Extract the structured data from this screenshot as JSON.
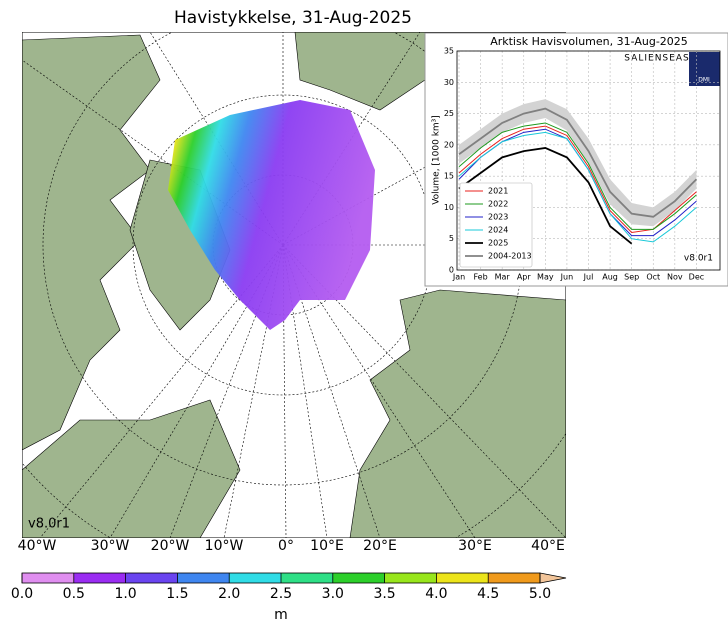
{
  "map": {
    "title": "Havistykkelse, 31-Aug-2025",
    "version": "v8.0r1",
    "longitude_labels": [
      "40°W",
      "30°W",
      "20°W",
      "10°W",
      "0°",
      "10°E",
      "20°E",
      "30°E",
      "40°E"
    ],
    "colorbar": {
      "ticks": [
        {
          "value": 0,
          "label": "0.0"
        },
        {
          "value": 0.5,
          "label": "0.5"
        },
        {
          "value": 1,
          "label": "1.0"
        },
        {
          "value": 1.5,
          "label": "1.5"
        },
        {
          "value": 2,
          "label": "2.0"
        },
        {
          "value": 2.5,
          "label": "2.5"
        },
        {
          "value": 3,
          "label": "3.0"
        },
        {
          "value": 3.5,
          "label": "3.5"
        },
        {
          "value": 4,
          "label": "4.0"
        },
        {
          "value": 4.5,
          "label": "4.5"
        },
        {
          "value": 5,
          "label": "5.0"
        }
      ],
      "lim": [
        0,
        5
      ],
      "colors": [
        "#e08ef0",
        "#9a2cf2",
        "#6a44f0",
        "#3f86f0",
        "#30dce6",
        "#2edf86",
        "#2ccf2a",
        "#98e61c",
        "#ece41a",
        "#f09a1c"
      ],
      "extend_color": "#f2c59a",
      "unit": "m"
    }
  },
  "chart_data": {
    "type": "line",
    "title": "Arktisk Havisvolumen, 31-Aug-2025",
    "y_label": "Volume, [1000 km³]",
    "version": "v8.0r1",
    "logo_text": "SALIENSEAS",
    "logo_badge": "DMI",
    "categories": [
      "Jan",
      "Feb",
      "Mar",
      "Apr",
      "May",
      "Jun",
      "Jul",
      "Aug",
      "Sep",
      "Oct",
      "Nov",
      "Dec"
    ],
    "ylim": [
      0,
      35
    ],
    "yticks": [
      0,
      5,
      10,
      15,
      20,
      25,
      30,
      35
    ],
    "grid": true,
    "series": [
      {
        "name": "2021",
        "color": "#e8201c",
        "values": [
          15.5,
          18.5,
          21,
          22.5,
          23,
          21.5,
          16.5,
          9.5,
          6,
          6.5,
          9.5,
          12.5
        ]
      },
      {
        "name": "2022",
        "color": "#1e9a1e",
        "values": [
          16.5,
          19.5,
          22,
          23,
          23.5,
          22,
          17,
          10,
          6.5,
          6.5,
          9,
          12
        ]
      },
      {
        "name": "2023",
        "color": "#2222c8",
        "values": [
          14.5,
          18,
          20.5,
          22,
          22.5,
          21,
          16,
          9,
          5.5,
          5.5,
          8,
          11
        ]
      },
      {
        "name": "2024",
        "color": "#18c8d8",
        "values": [
          15,
          18,
          20.5,
          21.5,
          22,
          21,
          16,
          9,
          5,
          4.5,
          7,
          10
        ]
      },
      {
        "name": "2025",
        "color": "#000000",
        "values": [
          13,
          15.5,
          18,
          19,
          19.5,
          18,
          14,
          7,
          4.2,
          null,
          null,
          null
        ]
      },
      {
        "name": "2004-2013",
        "color": "#808080",
        "values": [
          18.5,
          21,
          23.5,
          25,
          25.8,
          24,
          19,
          12.5,
          9,
          8.5,
          11,
          14.5
        ],
        "band": {
          "color": "#d3d3d3",
          "lower": [
            17,
            19.5,
            22,
            23.5,
            24.3,
            22.3,
            17,
            10.5,
            7.3,
            7,
            9.5,
            13
          ],
          "upper": [
            20,
            22.5,
            25,
            26.5,
            27.3,
            25.7,
            21,
            14.5,
            10.7,
            10,
            12.5,
            16
          ]
        }
      }
    ]
  }
}
